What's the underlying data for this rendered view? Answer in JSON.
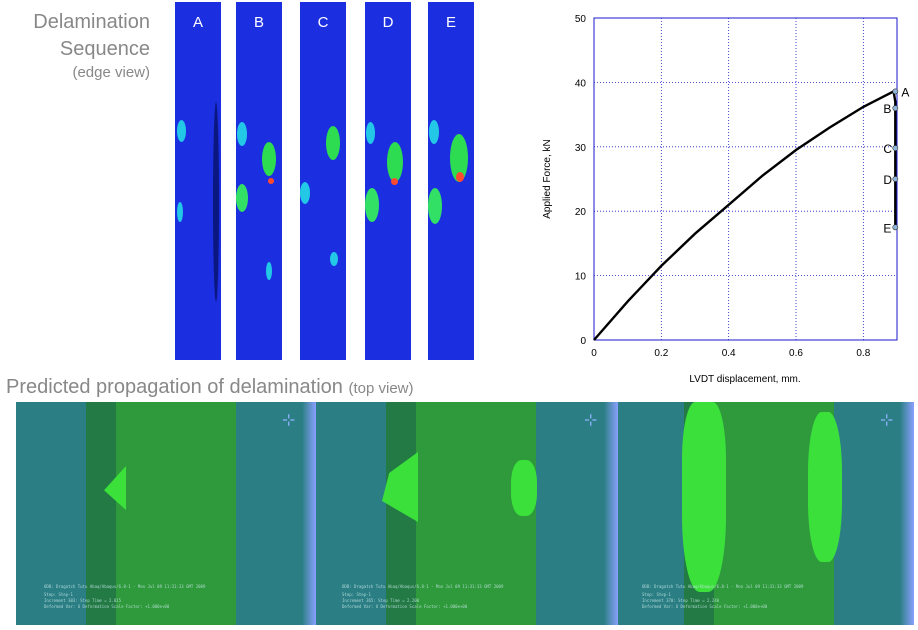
{
  "seq_title_line1": "Delamination",
  "seq_title_line2": "Sequence",
  "seq_subtitle": "(edge view)",
  "strips": [
    "A",
    "B",
    "C",
    "D",
    "E"
  ],
  "propagation_title": "Predicted propagation of delamination",
  "propagation_subtitle": "(top view)",
  "colors": {
    "strip_blue": "#1c2fe0",
    "panel_teal": "#2b7f84",
    "band_green": "#1f7a3a",
    "delam_green": "#33dd33",
    "curve": "#000000",
    "grid": "#1a1acc"
  },
  "chart_data": {
    "type": "line",
    "xlabel": "LVDT displacement,  mm.",
    "ylabel": "Applied Force,  kN",
    "xlim": [
      0,
      0.9
    ],
    "ylim": [
      0,
      50
    ],
    "xticks": [
      "0",
      "0.2",
      "0.4",
      "0.6",
      "0.8"
    ],
    "yticks": [
      "0",
      "10",
      "20",
      "30",
      "40",
      "50"
    ],
    "grid": true,
    "series": [
      {
        "x": [
          0,
          0.1,
          0.2,
          0.3,
          0.4,
          0.5,
          0.6,
          0.7,
          0.8,
          0.86,
          0.89,
          0.895,
          0.895,
          0.895,
          0.895,
          0.895
        ],
        "y": [
          0,
          6,
          11.5,
          16.5,
          21,
          25.5,
          29.5,
          33,
          36.2,
          37.8,
          38.6,
          37,
          33,
          29,
          24,
          17.5
        ]
      }
    ],
    "annotations": [
      {
        "label": "A",
        "x": 0.895,
        "y": 38.6
      },
      {
        "label": "B",
        "x": 0.895,
        "y": 36
      },
      {
        "label": "C",
        "x": 0.895,
        "y": 29.8
      },
      {
        "label": "D",
        "x": 0.895,
        "y": 25
      },
      {
        "label": "E",
        "x": 0.895,
        "y": 17.5
      }
    ]
  },
  "panels": [
    {
      "caption": "ODB: Dragatch Tutu Abaq/Abaqus/6.8-1 - Mon Jul 09 11:31:33 GMT 2009",
      "step": "Step: Step-1",
      "increment": "Increment 303: Step Time = 2.015",
      "deformed": "Deformed Var: U  Deformation Scale Factor: +1.000e+00"
    },
    {
      "caption": "ODB: Dragatch Tutu Abaq/Abaqus/6.8-1 - Mon Jul 09 11:31:33 GMT 2009",
      "step": "Step: Step-1",
      "increment": "Increment 365: Step Time = 2.200",
      "deformed": "Deformed Var: U  Deformation Scale Factor: +1.000e+00"
    },
    {
      "caption": "ODB: Dragatch Tutu Abaq/Abaqus/6.8-1 - Mon Jul 09 11:31:33 GMT 2009",
      "step": "Step: Step-1",
      "increment": "Increment 370: Step Time = 2.240",
      "deformed": "Deformed Var: U  Deformation Scale Factor: +1.000e+00"
    }
  ]
}
